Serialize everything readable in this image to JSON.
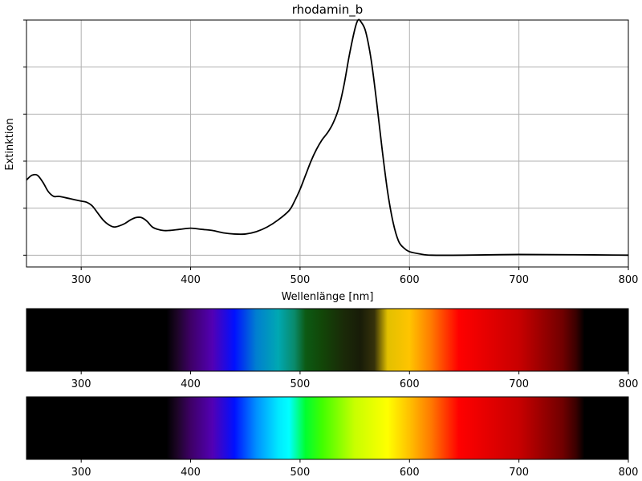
{
  "chart_data": {
    "type": "line",
    "title": "rhodamin_b",
    "xlabel": "Wellenlänge [nm]",
    "ylabel": "Extinktion",
    "xlim": [
      250,
      800
    ],
    "ylim": [
      -0.05,
      1.0
    ],
    "grid": true,
    "x_ticks": [
      300,
      400,
      500,
      600,
      700,
      800
    ],
    "y_ticks": [
      0.0,
      0.2,
      0.4,
      0.6,
      0.8,
      1.0
    ],
    "series": [
      {
        "color": "#000000",
        "x": [
          250,
          255,
          260,
          265,
          270,
          275,
          280,
          290,
          300,
          305,
          310,
          315,
          320,
          325,
          330,
          335,
          340,
          345,
          350,
          355,
          360,
          365,
          370,
          375,
          380,
          390,
          400,
          410,
          420,
          430,
          440,
          450,
          460,
          470,
          480,
          490,
          495,
          500,
          505,
          510,
          515,
          520,
          525,
          530,
          535,
          540,
          545,
          550,
          553,
          556,
          560,
          565,
          570,
          575,
          580,
          585,
          590,
          595,
          600,
          610,
          620,
          650,
          700,
          750,
          800
        ],
        "values": [
          0.32,
          0.34,
          0.34,
          0.31,
          0.27,
          0.25,
          0.25,
          0.24,
          0.23,
          0.225,
          0.21,
          0.18,
          0.15,
          0.13,
          0.12,
          0.125,
          0.135,
          0.15,
          0.16,
          0.16,
          0.145,
          0.12,
          0.11,
          0.105,
          0.105,
          0.11,
          0.115,
          0.11,
          0.105,
          0.095,
          0.09,
          0.09,
          0.1,
          0.12,
          0.15,
          0.19,
          0.23,
          0.28,
          0.34,
          0.4,
          0.45,
          0.49,
          0.52,
          0.56,
          0.62,
          0.72,
          0.85,
          0.96,
          1.0,
          0.99,
          0.95,
          0.83,
          0.65,
          0.45,
          0.27,
          0.14,
          0.06,
          0.03,
          0.015,
          0.005,
          0.0,
          0.0,
          0.003,
          0.002,
          0.0
        ]
      }
    ]
  },
  "spectrum_bars": [
    {
      "kind": "absorbed",
      "ticks": [
        300,
        400,
        500,
        600,
        700,
        800
      ],
      "stops": [
        {
          "nm": 250,
          "color": "#000000"
        },
        {
          "nm": 378,
          "color": "#000000"
        },
        {
          "nm": 388,
          "color": "#1e0528"
        },
        {
          "nm": 400,
          "color": "#3e0066"
        },
        {
          "nm": 420,
          "color": "#5200b4"
        },
        {
          "nm": 440,
          "color": "#0010ff"
        },
        {
          "nm": 460,
          "color": "#007fd0"
        },
        {
          "nm": 480,
          "color": "#00a8b2"
        },
        {
          "nm": 495,
          "color": "#0a8a6a"
        },
        {
          "nm": 505,
          "color": "#0c5a14"
        },
        {
          "nm": 520,
          "color": "#124608"
        },
        {
          "nm": 540,
          "color": "#1a2a08"
        },
        {
          "nm": 555,
          "color": "#181c08"
        },
        {
          "nm": 568,
          "color": "#36320a"
        },
        {
          "nm": 580,
          "color": "#e2c000"
        },
        {
          "nm": 600,
          "color": "#ffc400"
        },
        {
          "nm": 620,
          "color": "#ff7a00"
        },
        {
          "nm": 645,
          "color": "#ff0000"
        },
        {
          "nm": 700,
          "color": "#c80000"
        },
        {
          "nm": 740,
          "color": "#700000"
        },
        {
          "nm": 752,
          "color": "#3a0000"
        },
        {
          "nm": 760,
          "color": "#000000"
        },
        {
          "nm": 800,
          "color": "#000000"
        }
      ]
    },
    {
      "kind": "visible",
      "ticks": [
        300,
        400,
        500,
        600,
        700,
        800
      ],
      "stops": [
        {
          "nm": 250,
          "color": "#000000"
        },
        {
          "nm": 378,
          "color": "#000000"
        },
        {
          "nm": 388,
          "color": "#1e0528"
        },
        {
          "nm": 400,
          "color": "#3e0066"
        },
        {
          "nm": 420,
          "color": "#5200b4"
        },
        {
          "nm": 440,
          "color": "#0010ff"
        },
        {
          "nm": 460,
          "color": "#0090ff"
        },
        {
          "nm": 480,
          "color": "#00e8ff"
        },
        {
          "nm": 490,
          "color": "#00ffff"
        },
        {
          "nm": 505,
          "color": "#00ff30"
        },
        {
          "nm": 520,
          "color": "#40ff00"
        },
        {
          "nm": 550,
          "color": "#c8ff00"
        },
        {
          "nm": 580,
          "color": "#ffff00"
        },
        {
          "nm": 600,
          "color": "#ffc000"
        },
        {
          "nm": 620,
          "color": "#ff7800"
        },
        {
          "nm": 645,
          "color": "#ff0000"
        },
        {
          "nm": 700,
          "color": "#c80000"
        },
        {
          "nm": 740,
          "color": "#700000"
        },
        {
          "nm": 752,
          "color": "#3a0000"
        },
        {
          "nm": 760,
          "color": "#000000"
        },
        {
          "nm": 800,
          "color": "#000000"
        }
      ]
    }
  ]
}
